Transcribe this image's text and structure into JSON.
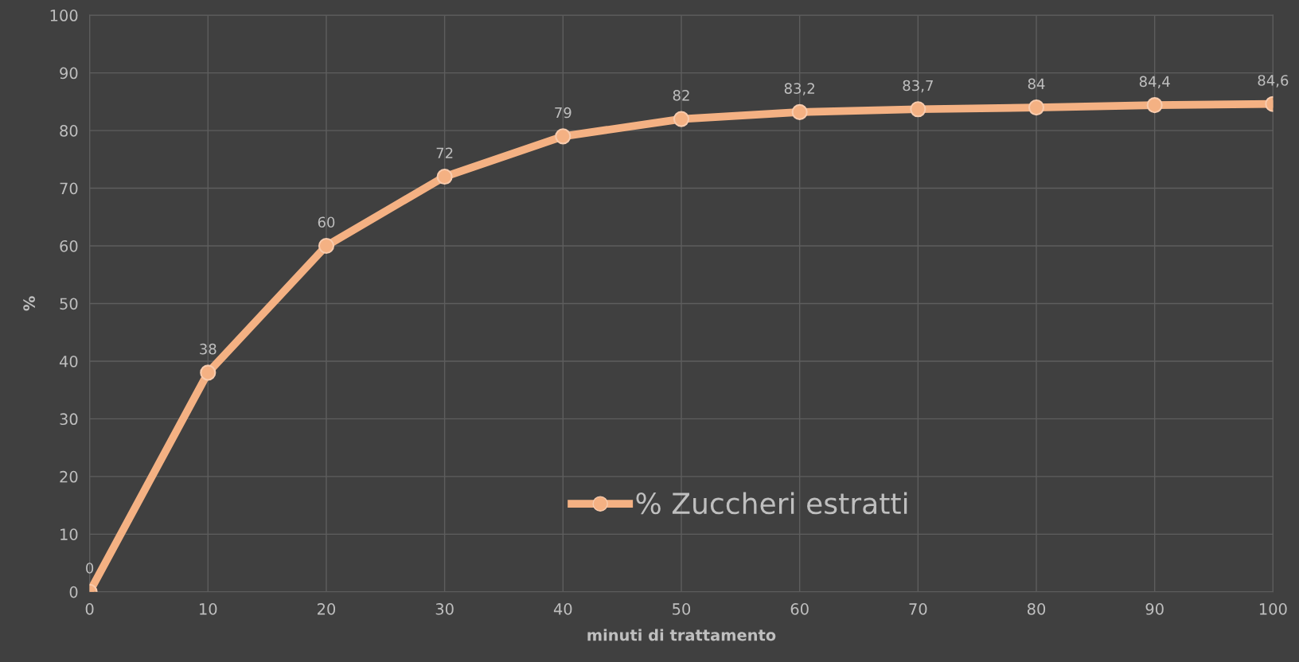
{
  "chart_data": {
    "type": "line",
    "xlabel": "minuti di trattamento",
    "ylabel": "%",
    "x": [
      0,
      10,
      20,
      30,
      40,
      50,
      60,
      70,
      80,
      90,
      100
    ],
    "series": [
      {
        "name": "% Zuccheri estratti",
        "color": "#f4b183",
        "values": [
          0,
          38,
          60,
          72,
          79,
          82,
          83.2,
          83.7,
          84,
          84.4,
          84.6
        ],
        "value_labels": [
          "0",
          "38",
          "60",
          "72",
          "79",
          "82",
          "83,2",
          "83,7",
          "84",
          "84,4",
          "84,6"
        ]
      }
    ],
    "xlim": [
      0,
      100
    ],
    "xticks": [
      0,
      10,
      20,
      30,
      40,
      50,
      60,
      70,
      80,
      90,
      100
    ],
    "ylim": [
      0,
      100
    ],
    "yticks": [
      0,
      10,
      20,
      30,
      40,
      50,
      60,
      70,
      80,
      90,
      100
    ],
    "grid": true,
    "legend": "bottom",
    "marker": "circle",
    "line_style": "solid"
  }
}
